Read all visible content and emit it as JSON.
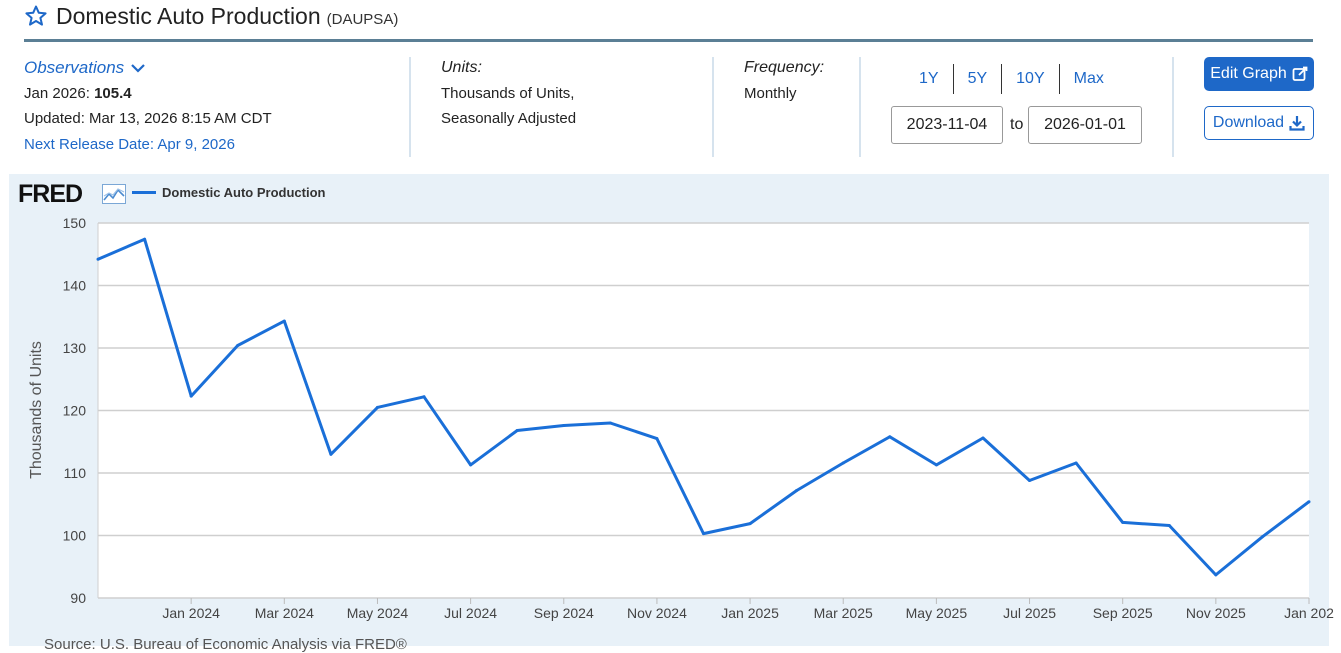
{
  "header": {
    "title": "Domestic Auto Production",
    "series_id": "(DAUPSA)"
  },
  "observations": {
    "toggle_label": "Observations",
    "latest_prefix": "Jan 2026:",
    "latest_value": "105.4",
    "updated": "Updated: Mar 13, 2026 8:15 AM CDT",
    "next_release": "Next Release Date: Apr 9, 2026"
  },
  "units": {
    "label": "Units:",
    "line1": "Thousands of Units,",
    "line2": "Seasonally Adjusted"
  },
  "frequency": {
    "label": "Frequency:",
    "value": "Monthly"
  },
  "range": {
    "buttons": [
      "1Y",
      "5Y",
      "10Y",
      "Max"
    ],
    "start": "2023-11-04",
    "to_label": "to",
    "end": "2026-01-01"
  },
  "actions": {
    "edit": "Edit Graph",
    "download": "Download"
  },
  "chart_meta": {
    "logo": "FRED",
    "source": "Source: U.S. Bureau of Economic Analysis via FRED®"
  },
  "colors": {
    "accent": "#1e68c8",
    "line": "#1a6fd8",
    "panel": "#e8f1f8"
  },
  "chart_data": {
    "type": "line",
    "title": "",
    "xlabel": "",
    "ylabel": "Thousands of Units",
    "ylim": [
      90,
      150
    ],
    "yticks": [
      90,
      100,
      110,
      120,
      130,
      140,
      150
    ],
    "grid": true,
    "legend": "top-left",
    "x": [
      "2023-11",
      "2023-12",
      "2024-01",
      "2024-02",
      "2024-03",
      "2024-04",
      "2024-05",
      "2024-06",
      "2024-07",
      "2024-08",
      "2024-09",
      "2024-10",
      "2024-11",
      "2024-12",
      "2025-01",
      "2025-02",
      "2025-03",
      "2025-04",
      "2025-05",
      "2025-06",
      "2025-07",
      "2025-08",
      "2025-09",
      "2025-10",
      "2025-11",
      "2025-12",
      "2026-01"
    ],
    "xticks": [
      {
        "label": "Jan 2024",
        "index": 2
      },
      {
        "label": "Mar 2024",
        "index": 4
      },
      {
        "label": "May 2024",
        "index": 6
      },
      {
        "label": "Jul 2024",
        "index": 8
      },
      {
        "label": "Sep 2024",
        "index": 10
      },
      {
        "label": "Nov 2024",
        "index": 12
      },
      {
        "label": "Jan 2025",
        "index": 14
      },
      {
        "label": "Mar 2025",
        "index": 16
      },
      {
        "label": "May 2025",
        "index": 18
      },
      {
        "label": "Jul 2025",
        "index": 20
      },
      {
        "label": "Sep 2025",
        "index": 22
      },
      {
        "label": "Nov 2025",
        "index": 24
      },
      {
        "label": "Jan 202",
        "index": 26
      }
    ],
    "series": [
      {
        "name": "Domestic Auto Production",
        "values": [
          144.2,
          147.4,
          122.3,
          130.4,
          134.3,
          113.0,
          120.5,
          122.2,
          111.3,
          116.8,
          117.6,
          118.0,
          115.5,
          100.3,
          101.9,
          107.2,
          111.6,
          115.8,
          111.3,
          115.6,
          108.8,
          111.6,
          102.1,
          101.6,
          93.7,
          99.8,
          105.4
        ]
      }
    ]
  }
}
